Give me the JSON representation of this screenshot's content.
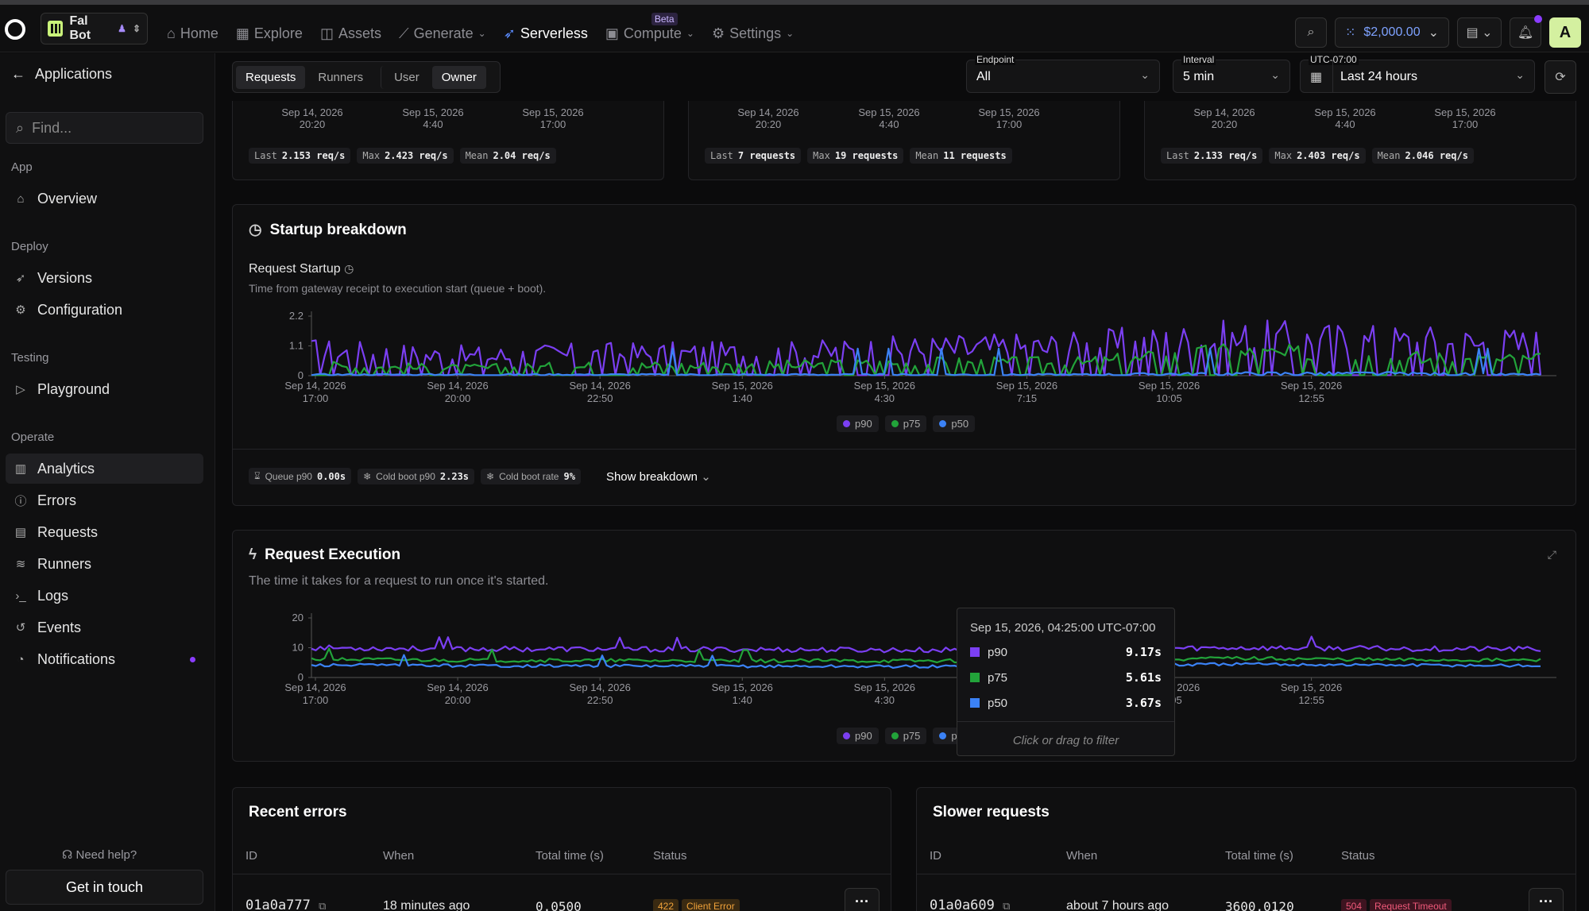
{
  "app": {
    "name": "Fal Bot"
  },
  "nav": {
    "items": [
      {
        "label": "Home",
        "icon": "home-icon"
      },
      {
        "label": "Explore",
        "icon": "grid-icon"
      },
      {
        "label": "Assets",
        "icon": "assets-icon"
      },
      {
        "label": "Generate",
        "icon": "wand-icon"
      },
      {
        "label": "Serverless",
        "icon": "rocket-icon"
      },
      {
        "label": "Compute",
        "icon": "chip-icon"
      },
      {
        "label": "Settings",
        "icon": "gear-icon"
      }
    ],
    "beta": "Beta"
  },
  "account": {
    "credits": "$2,000.00",
    "avatar": "A"
  },
  "sidebar": {
    "back": "Applications",
    "find_placeholder": "Find...",
    "sec_app": "App",
    "overview": "Overview",
    "sec_deploy": "Deploy",
    "versions": "Versions",
    "configuration": "Configuration",
    "sec_testing": "Testing",
    "playground": "Playground",
    "sec_operate": "Operate",
    "analytics": "Analytics",
    "errors": "Errors",
    "requests": "Requests",
    "runners": "Runners",
    "logs": "Logs",
    "events": "Events",
    "notifications": "Notifications",
    "need_help": "Need help?",
    "get_in_touch": "Get in touch"
  },
  "filters": {
    "tab_requests": "Requests",
    "tab_runners": "Runners",
    "tab_user": "User",
    "tab_owner": "Owner",
    "endpoint_label": "Endpoint",
    "endpoint_value": "All",
    "interval_label": "Interval",
    "interval_value": "5 min",
    "tz_label": "UTC-07:00",
    "range_value": "Last 24 hours"
  },
  "top_cards": [
    {
      "ticks": [
        [
          "Sep 14, 2026",
          "20:20"
        ],
        [
          "Sep 15, 2026",
          "4:40"
        ],
        [
          "Sep 15, 2026",
          "17:00"
        ]
      ],
      "stats": [
        [
          "Last",
          "2.153 req/s"
        ],
        [
          "Max",
          "2.423 req/s"
        ],
        [
          "Mean",
          "2.04 req/s"
        ]
      ]
    },
    {
      "ticks": [
        [
          "Sep 14, 2026",
          "20:20"
        ],
        [
          "Sep 15, 2026",
          "4:40"
        ],
        [
          "Sep 15, 2026",
          "17:00"
        ]
      ],
      "stats": [
        [
          "Last",
          "7 requests"
        ],
        [
          "Max",
          "19 requests"
        ],
        [
          "Mean",
          "11 requests"
        ]
      ]
    },
    {
      "ticks": [
        [
          "Sep 14, 2026",
          "20:20"
        ],
        [
          "Sep 15, 2026",
          "4:40"
        ],
        [
          "Sep 15, 2026",
          "17:00"
        ]
      ],
      "stats": [
        [
          "Last",
          "2.133 req/s"
        ],
        [
          "Max",
          "2.403 req/s"
        ],
        [
          "Mean",
          "2.046 req/s"
        ]
      ]
    }
  ],
  "startup": {
    "title": "Startup breakdown",
    "chart_title": "Request Startup",
    "desc": "Time from gateway receipt to execution start (queue + boot).",
    "yticks": [
      "2.2",
      "1.1",
      "0"
    ],
    "queue_label": "Queue p90",
    "queue_val": "0.00s",
    "cold_label": "Cold boot p90",
    "cold_val": "2.23s",
    "rate_label": "Cold boot rate",
    "rate_val": "9%",
    "show_breakdown": "Show breakdown"
  },
  "execution": {
    "title": "Request Execution",
    "desc": "The time it takes for a request to run once it's started.",
    "yticks": [
      "20",
      "10",
      "0"
    ]
  },
  "xticks": [
    [
      "Sep 14, 2026",
      "17:00"
    ],
    [
      "Sep 14, 2026",
      "20:00"
    ],
    [
      "Sep 14, 2026",
      "22:50"
    ],
    [
      "Sep 15, 2026",
      "1:40"
    ],
    [
      "Sep 15, 2026",
      "4:30"
    ],
    [
      "Sep 15, 2026",
      "7:15"
    ],
    [
      "Sep 15, 2026",
      "10:05"
    ],
    [
      "Sep 15, 2026",
      "12:55"
    ]
  ],
  "legend": {
    "p90": "p90",
    "p75": "p75",
    "p50": "p50"
  },
  "colors": {
    "p90": "#7b3ff2",
    "p75": "#22a33a",
    "p50": "#3b82f6"
  },
  "tooltip": {
    "time": "Sep 15, 2026, 04:25:00 UTC-07:00",
    "p90": "9.17s",
    "p75": "5.61s",
    "p50": "3.67s",
    "hint": "Click or drag to filter"
  },
  "errors": {
    "title": "Recent errors",
    "cols": [
      "ID",
      "When",
      "Total time (s)",
      "Status"
    ],
    "row": {
      "id": "01a0a777",
      "when": "18 minutes ago",
      "time": "0.0500",
      "code": "422",
      "status": "Client Error"
    }
  },
  "slower": {
    "title": "Slower requests",
    "cols": [
      "ID",
      "When",
      "Total time (s)",
      "Status"
    ],
    "row": {
      "id": "01a0a609",
      "when": "about 7 hours ago",
      "time": "3600.0120",
      "code": "504",
      "status": "Request Timeout"
    }
  },
  "chart_data": [
    {
      "type": "line",
      "title": "Request Startup",
      "x": [
        "Sep 14, 2026 17:00",
        "Sep 14, 2026 20:00",
        "Sep 14, 2026 22:50",
        "Sep 15, 2026 1:40",
        "Sep 15, 2026 4:30",
        "Sep 15, 2026 7:15",
        "Sep 15, 2026 10:05",
        "Sep 15, 2026 12:55",
        "Sep 15, 2026 17:00"
      ],
      "series": [
        {
          "name": "p90",
          "values": [
            1.0,
            0.8,
            0.9,
            0.9,
            1.1,
            1.2,
            1.5,
            1.4,
            1.3
          ]
        },
        {
          "name": "p75",
          "values": [
            0.4,
            0.3,
            0.4,
            0.4,
            0.5,
            0.5,
            0.9,
            0.7,
            0.6
          ]
        },
        {
          "name": "p50",
          "values": [
            0.05,
            0.05,
            0.05,
            0.05,
            0.05,
            0.05,
            0.1,
            0.1,
            0.05
          ]
        }
      ],
      "ylim": [
        0,
        2.2
      ]
    },
    {
      "type": "line",
      "title": "Request Execution",
      "x": [
        "Sep 14, 2026 17:00",
        "Sep 14, 2026 20:00",
        "Sep 14, 2026 22:50",
        "Sep 15, 2026 1:40",
        "Sep 15, 2026 4:30",
        "Sep 15, 2026 7:15",
        "Sep 15, 2026 10:05",
        "Sep 15, 2026 12:55",
        "Sep 15, 2026 17:00"
      ],
      "series": [
        {
          "name": "p90",
          "values": [
            10,
            9.6,
            9.5,
            9.4,
            9.2,
            9.5,
            10,
            9.7,
            9.5
          ]
        },
        {
          "name": "p75",
          "values": [
            6.2,
            5.8,
            5.7,
            5.6,
            5.6,
            5.8,
            6.5,
            6.0,
            5.8
          ]
        },
        {
          "name": "p50",
          "values": [
            4.2,
            4.0,
            3.9,
            3.8,
            3.7,
            3.8,
            4.5,
            4.2,
            4.0
          ]
        }
      ],
      "ylim": [
        0,
        20
      ]
    }
  ]
}
